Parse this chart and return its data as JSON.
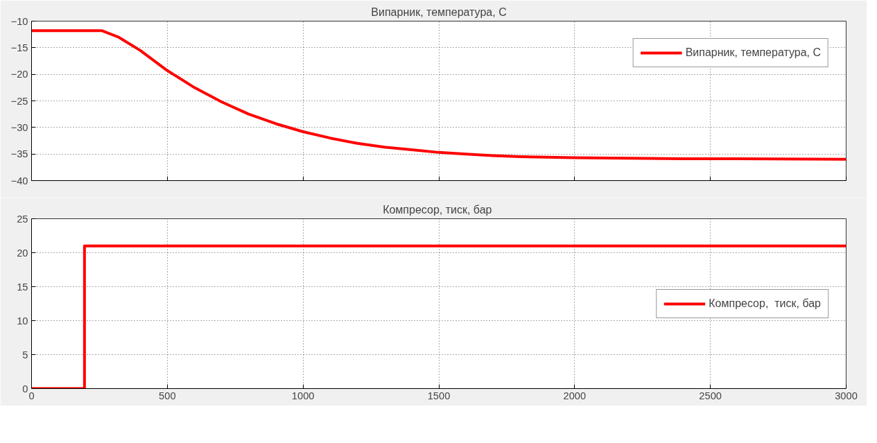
{
  "chart_data": [
    {
      "type": "line",
      "title": "Випарник, температура, С",
      "tick_labels": "y",
      "grid": true,
      "legend": "top right",
      "line_style": "solid",
      "marker": "none",
      "xlim": [
        0,
        3000
      ],
      "xticks": [
        0,
        500,
        1000,
        1500,
        2000,
        2500,
        3000
      ],
      "ylim": [
        -40,
        -10
      ],
      "yticks": [
        -40,
        -35,
        -30,
        -25,
        -20,
        -15,
        -10
      ],
      "series": [
        {
          "name": "Випарник, температура, С",
          "color": "#ff0000",
          "x": [
            0,
            260,
            320,
            400,
            500,
            600,
            700,
            800,
            900,
            1000,
            1100,
            1200,
            1300,
            1400,
            1500,
            1600,
            1700,
            1800,
            1900,
            2000,
            2200,
            2400,
            2600,
            3000
          ],
          "values": [
            -11.8,
            -11.8,
            -13.0,
            -15.5,
            -19.3,
            -22.5,
            -25.2,
            -27.5,
            -29.3,
            -30.8,
            -32.0,
            -33.0,
            -33.7,
            -34.2,
            -34.7,
            -35.0,
            -35.3,
            -35.5,
            -35.6,
            -35.7,
            -35.8,
            -35.9,
            -35.9,
            -36.0
          ]
        }
      ]
    },
    {
      "type": "line",
      "title": "Компресор,  тиск, бар",
      "grid": true,
      "legend": "right",
      "line_style": "solid",
      "marker": "none",
      "xlim": [
        0,
        3000
      ],
      "xticks": [
        0,
        500,
        1000,
        1500,
        2000,
        2500,
        3000
      ],
      "ylim": [
        0,
        25
      ],
      "yticks": [
        0,
        5,
        10,
        15,
        20,
        25
      ],
      "series": [
        {
          "name": "Компресор,  тиск, бар",
          "color": "#ff0000",
          "x": [
            0,
            195,
            195,
            3000
          ],
          "values": [
            0,
            0,
            21,
            21
          ]
        }
      ]
    }
  ]
}
